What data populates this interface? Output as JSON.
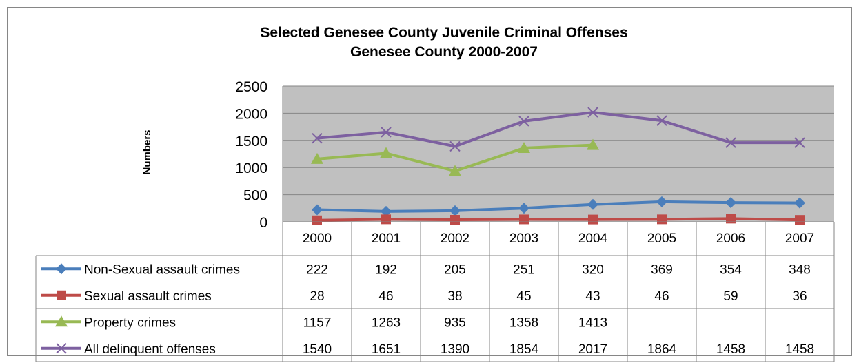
{
  "chart_data": {
    "type": "line",
    "title": "Selected Genesee County Juvenile Criminal Offenses",
    "subtitle": "Genesee County 2000-2007",
    "xlabel": "",
    "ylabel": "Numbers",
    "ylim": [
      0,
      2500
    ],
    "yticks": [
      "0",
      "500",
      "1000",
      "1500",
      "2000",
      "2500"
    ],
    "categories": [
      "2000",
      "2001",
      "2002",
      "2003",
      "2004",
      "2005",
      "2006",
      "2007"
    ],
    "grid": true,
    "legend": "data-table",
    "series": [
      {
        "name": "Non-Sexual assault crimes",
        "color": "#4a7ebb",
        "marker": "diamond",
        "values": [
          222,
          192,
          205,
          251,
          320,
          369,
          354,
          348
        ]
      },
      {
        "name": "Sexual assault crimes",
        "color": "#be4b48",
        "marker": "square",
        "values": [
          28,
          46,
          38,
          45,
          43,
          46,
          59,
          36
        ]
      },
      {
        "name": "Property crimes",
        "color": "#98b954",
        "marker": "triangle",
        "values": [
          1157,
          1263,
          935,
          1358,
          1413,
          null,
          null,
          null
        ]
      },
      {
        "name": "All delinquent offenses",
        "color": "#7d60a0",
        "marker": "x",
        "values": [
          1540,
          1651,
          1390,
          1854,
          2017,
          1864,
          1458,
          1458
        ]
      }
    ],
    "colors": {
      "plot_background": "#c0c0c0",
      "gridline": "#868686",
      "frame": "#868686"
    }
  }
}
